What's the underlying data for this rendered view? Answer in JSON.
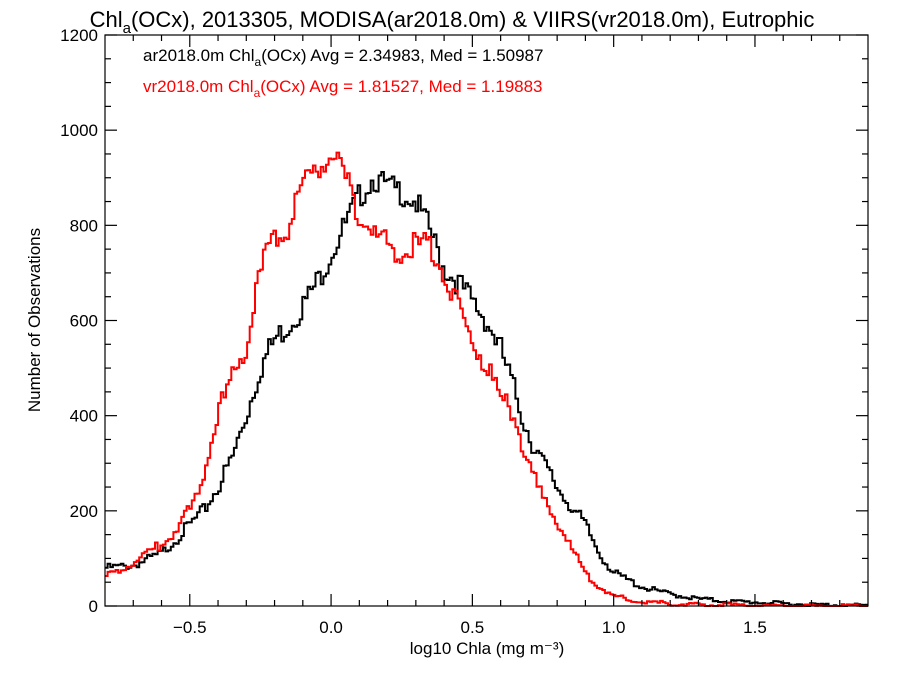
{
  "chart_data": {
    "type": "line",
    "title": "Chl_a(OCx), 2013305, MODISA(ar2018.0m) & VIIRS(vr2018.0m), Eutrophic",
    "title_parts": {
      "pre": "Chl",
      "sub": "a",
      "post": "(OCx), 2013305, MODISA(ar2018.0m) & VIIRS(vr2018.0m), Eutrophic"
    },
    "xlabel": "log10 Chla (mg m⁻³)",
    "ylabel": "Number of Observations",
    "xlim": [
      -0.8,
      1.9
    ],
    "ylim": [
      0,
      1200
    ],
    "xticks": [
      -0.5,
      0.0,
      0.5,
      1.0,
      1.5
    ],
    "xtick_labels": [
      "−0.5",
      "0.0",
      "0.5",
      "1.0",
      "1.5"
    ],
    "yticks": [
      0,
      200,
      400,
      600,
      800,
      1000,
      1200
    ],
    "ytick_labels": [
      "0",
      "200",
      "400",
      "600",
      "800",
      "1000",
      "1200"
    ],
    "grid": false,
    "legend_placement": "top-left",
    "series": [
      {
        "name": "ar2018.0m Chl_a(OCx) Avg = 2.34983, Med = 1.50987",
        "legend_parts": {
          "pre": "ar2018.0m Chl",
          "sub": "a",
          "post": "(OCx) Avg = 2.34983, Med = 1.50987"
        },
        "color": "#000000",
        "points": [
          [
            -0.8,
            80
          ],
          [
            -0.7,
            85
          ],
          [
            -0.6,
            110
          ],
          [
            -0.5,
            170
          ],
          [
            -0.45,
            200
          ],
          [
            -0.4,
            250
          ],
          [
            -0.35,
            310
          ],
          [
            -0.3,
            400
          ],
          [
            -0.25,
            500
          ],
          [
            -0.2,
            560
          ],
          [
            -0.15,
            590
          ],
          [
            -0.1,
            630
          ],
          [
            -0.05,
            680
          ],
          [
            0.0,
            740
          ],
          [
            0.05,
            800
          ],
          [
            0.1,
            860
          ],
          [
            0.15,
            900
          ],
          [
            0.2,
            880
          ],
          [
            0.25,
            870
          ],
          [
            0.3,
            850
          ],
          [
            0.35,
            790
          ],
          [
            0.4,
            710
          ],
          [
            0.45,
            680
          ],
          [
            0.5,
            640
          ],
          [
            0.55,
            600
          ],
          [
            0.6,
            540
          ],
          [
            0.65,
            450
          ],
          [
            0.7,
            360
          ],
          [
            0.75,
            300
          ],
          [
            0.8,
            250
          ],
          [
            0.85,
            210
          ],
          [
            0.9,
            170
          ],
          [
            0.95,
            110
          ],
          [
            1.0,
            70
          ],
          [
            1.1,
            40
          ],
          [
            1.2,
            25
          ],
          [
            1.3,
            15
          ],
          [
            1.4,
            10
          ],
          [
            1.5,
            8
          ],
          [
            1.6,
            5
          ],
          [
            1.7,
            3
          ],
          [
            1.8,
            2
          ],
          [
            1.9,
            1
          ]
        ]
      },
      {
        "name": "vr2018.0m Chl_a(OCx) Avg = 1.81527, Med = 1.19883",
        "legend_parts": {
          "pre": "vr2018.0m Chl",
          "sub": "a",
          "post": "(OCx) Avg = 1.81527, Med = 1.19883"
        },
        "color": "#ff0000",
        "points": [
          [
            -0.8,
            60
          ],
          [
            -0.7,
            90
          ],
          [
            -0.6,
            130
          ],
          [
            -0.55,
            160
          ],
          [
            -0.5,
            200
          ],
          [
            -0.45,
            280
          ],
          [
            -0.4,
            400
          ],
          [
            -0.35,
            480
          ],
          [
            -0.3,
            550
          ],
          [
            -0.25,
            700
          ],
          [
            -0.2,
            780
          ],
          [
            -0.15,
            800
          ],
          [
            -0.1,
            880
          ],
          [
            -0.05,
            920
          ],
          [
            0.0,
            950
          ],
          [
            0.05,
            900
          ],
          [
            0.1,
            820
          ],
          [
            0.15,
            780
          ],
          [
            0.2,
            760
          ],
          [
            0.25,
            740
          ],
          [
            0.3,
            760
          ],
          [
            0.35,
            760
          ],
          [
            0.4,
            700
          ],
          [
            0.45,
            630
          ],
          [
            0.5,
            560
          ],
          [
            0.55,
            500
          ],
          [
            0.6,
            440
          ],
          [
            0.65,
            400
          ],
          [
            0.7,
            300
          ],
          [
            0.75,
            220
          ],
          [
            0.8,
            180
          ],
          [
            0.85,
            120
          ],
          [
            0.9,
            70
          ],
          [
            0.95,
            40
          ],
          [
            1.0,
            20
          ],
          [
            1.1,
            10
          ],
          [
            1.2,
            5
          ],
          [
            1.3,
            3
          ],
          [
            1.4,
            2
          ],
          [
            1.5,
            1
          ],
          [
            1.6,
            0
          ],
          [
            1.9,
            0
          ]
        ]
      }
    ]
  }
}
